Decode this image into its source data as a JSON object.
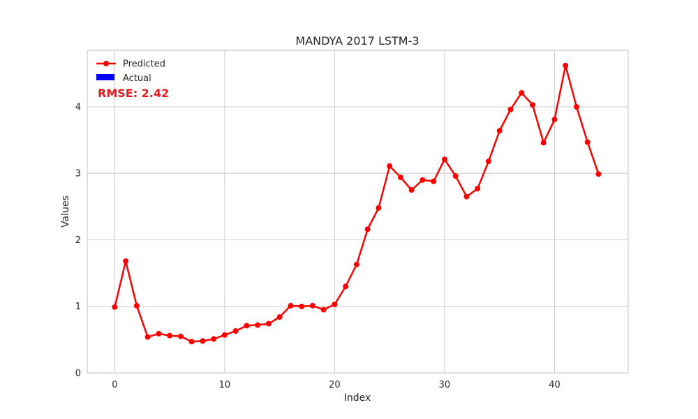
{
  "chart_data": {
    "type": "line",
    "title": "MANDYA 2017 LSTM-3",
    "xlabel": "Index",
    "ylabel": "Values",
    "xlim": [
      -2.5,
      46.7
    ],
    "ylim": [
      0,
      4.85
    ],
    "xticks": [
      0,
      10,
      20,
      30,
      40
    ],
    "yticks": [
      0,
      1,
      2,
      3,
      4
    ],
    "grid": true,
    "legend_location": "upper-left",
    "annotation": "RMSE: 2.42",
    "series": [
      {
        "name": "Predicted",
        "color": "#ff0000",
        "marker": "circle",
        "x": [
          0,
          1,
          2,
          3,
          4,
          5,
          6,
          7,
          8,
          9,
          10,
          11,
          12,
          13,
          14,
          15,
          16,
          17,
          18,
          19,
          20,
          21,
          22,
          23,
          24,
          25,
          26,
          27,
          28,
          29,
          30,
          31,
          32,
          33,
          34,
          35,
          36,
          37,
          38,
          39,
          40,
          41,
          42,
          43,
          44
        ],
        "values": [
          0.99,
          1.68,
          1.01,
          0.54,
          0.59,
          0.56,
          0.55,
          0.47,
          0.48,
          0.51,
          0.57,
          0.63,
          0.71,
          0.72,
          0.74,
          0.84,
          1.01,
          1.0,
          1.01,
          0.95,
          1.03,
          1.3,
          1.63,
          2.16,
          2.48,
          3.11,
          2.94,
          2.75,
          2.9,
          2.88,
          3.21,
          2.96,
          2.65,
          2.77,
          3.18,
          3.64,
          3.96,
          4.21,
          4.03,
          3.46,
          3.81,
          4.62,
          4.0,
          3.47,
          2.99
        ]
      },
      {
        "name": "Actual",
        "color": "#0000ff",
        "values": []
      }
    ]
  }
}
